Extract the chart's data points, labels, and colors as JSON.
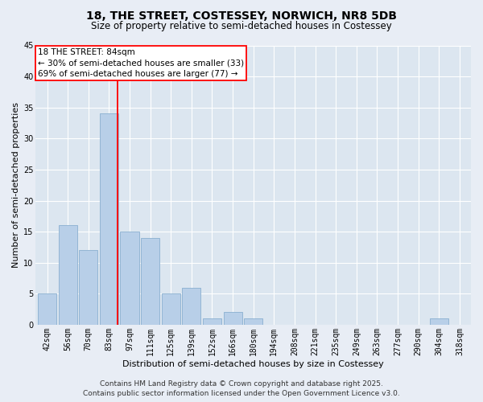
{
  "title": "18, THE STREET, COSTESSEY, NORWICH, NR8 5DB",
  "subtitle": "Size of property relative to semi-detached houses in Costessey",
  "xlabel": "Distribution of semi-detached houses by size in Costessey",
  "ylabel": "Number of semi-detached properties",
  "categories": [
    "42sqm",
    "56sqm",
    "70sqm",
    "83sqm",
    "97sqm",
    "111sqm",
    "125sqm",
    "139sqm",
    "152sqm",
    "166sqm",
    "180sqm",
    "194sqm",
    "208sqm",
    "221sqm",
    "235sqm",
    "249sqm",
    "263sqm",
    "277sqm",
    "290sqm",
    "304sqm",
    "318sqm"
  ],
  "values": [
    5,
    16,
    12,
    34,
    15,
    14,
    5,
    6,
    1,
    2,
    1,
    0,
    0,
    0,
    0,
    0,
    0,
    0,
    0,
    1,
    0
  ],
  "bar_color": "#b8cfe8",
  "bar_edge_color": "#8ab0d0",
  "ylim": [
    0,
    45
  ],
  "yticks": [
    0,
    5,
    10,
    15,
    20,
    25,
    30,
    35,
    40,
    45
  ],
  "red_line_x": 3.42,
  "annotation_title": "18 THE STREET: 84sqm",
  "annotation_line1": "← 30% of semi-detached houses are smaller (33)",
  "annotation_line2": "69% of semi-detached houses are larger (77) →",
  "footer_line1": "Contains HM Land Registry data © Crown copyright and database right 2025.",
  "footer_line2": "Contains public sector information licensed under the Open Government Licence v3.0.",
  "bg_color": "#e8edf5",
  "plot_bg_color": "#dce6f0",
  "grid_color": "#ffffff",
  "title_fontsize": 10,
  "subtitle_fontsize": 8.5,
  "label_fontsize": 8,
  "tick_fontsize": 7,
  "footer_fontsize": 6.5,
  "annotation_fontsize": 7.5
}
